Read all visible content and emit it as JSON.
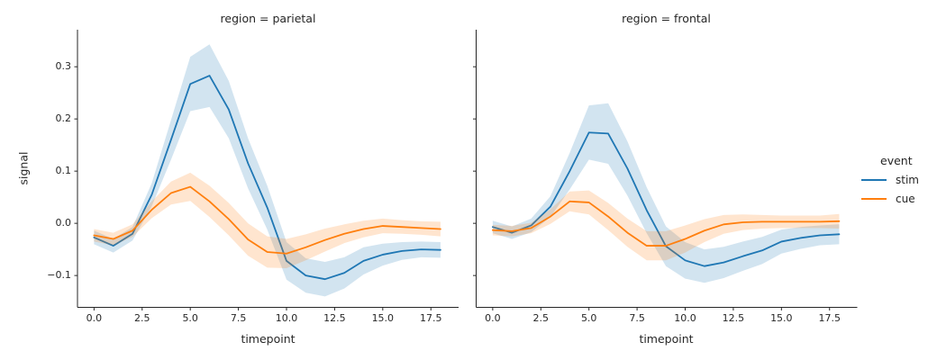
{
  "colors": {
    "stim": "#1f77b4",
    "cue": "#ff7f0e",
    "text": "#262626",
    "spine": "#262626",
    "band_alpha": 0.2,
    "background": "#ffffff"
  },
  "legend": {
    "title": "event",
    "position": "right",
    "items": [
      {
        "label": "stim",
        "color_key": "stim"
      },
      {
        "label": "cue",
        "color_key": "cue"
      }
    ]
  },
  "axes": {
    "xlabel": "timepoint",
    "ylabel": "signal",
    "x_ticks": [
      0,
      2.5,
      5,
      7.5,
      10,
      12.5,
      15,
      17.5
    ],
    "x_tick_labels": [
      "0.0",
      "2.5",
      "5.0",
      "7.5",
      "10.0",
      "12.5",
      "15.0",
      "17.5"
    ],
    "y_ticks": [
      0.3,
      0.2,
      0.1,
      0.0,
      -0.1
    ],
    "y_tick_labels": [
      "0.3",
      "0.2",
      "0.1",
      "0.0",
      "−0.1"
    ],
    "grid": false
  },
  "chart_data": [
    {
      "type": "line",
      "title": "region = parietal",
      "region": "parietal",
      "xlabel": "timepoint",
      "ylabel": "signal",
      "xlim": [
        -0.86,
        18.94
      ],
      "ylim": [
        -0.161,
        0.371
      ],
      "x": [
        0,
        1,
        2,
        3,
        4,
        5,
        6,
        7,
        8,
        9,
        10,
        11,
        12,
        13,
        14,
        15,
        16,
        17,
        18
      ],
      "series": [
        {
          "name": "stim",
          "values": [
            -0.027,
            -0.043,
            -0.02,
            0.055,
            0.16,
            0.267,
            0.283,
            0.218,
            0.115,
            0.03,
            -0.072,
            -0.1,
            -0.107,
            -0.095,
            -0.072,
            -0.06,
            -0.053,
            -0.05,
            -0.051
          ],
          "ci_half": [
            0.013,
            0.013,
            0.013,
            0.022,
            0.038,
            0.052,
            0.06,
            0.055,
            0.048,
            0.042,
            0.036,
            0.033,
            0.033,
            0.03,
            0.026,
            0.021,
            0.017,
            0.015,
            0.015
          ]
        },
        {
          "name": "cue",
          "values": [
            -0.023,
            -0.03,
            -0.014,
            0.026,
            0.058,
            0.07,
            0.042,
            0.008,
            -0.031,
            -0.055,
            -0.058,
            -0.046,
            -0.032,
            -0.02,
            -0.011,
            -0.005,
            -0.007,
            -0.009,
            -0.011
          ],
          "ci_half": [
            0.012,
            0.012,
            0.012,
            0.016,
            0.022,
            0.027,
            0.03,
            0.031,
            0.031,
            0.03,
            0.028,
            0.025,
            0.022,
            0.018,
            0.016,
            0.014,
            0.013,
            0.013,
            0.014
          ]
        }
      ]
    },
    {
      "type": "line",
      "title": "region = frontal",
      "region": "frontal",
      "xlabel": "timepoint",
      "ylabel": "signal",
      "xlim": [
        -0.86,
        18.94
      ],
      "ylim": [
        -0.161,
        0.371
      ],
      "x": [
        0,
        1,
        2,
        3,
        4,
        5,
        6,
        7,
        8,
        9,
        10,
        11,
        12,
        13,
        14,
        15,
        16,
        17,
        18
      ],
      "series": [
        {
          "name": "stim",
          "values": [
            -0.007,
            -0.018,
            -0.004,
            0.032,
            0.1,
            0.174,
            0.172,
            0.105,
            0.025,
            -0.044,
            -0.071,
            -0.082,
            -0.075,
            -0.063,
            -0.052,
            -0.035,
            -0.028,
            -0.023,
            -0.021
          ],
          "ci_half": [
            0.012,
            0.012,
            0.013,
            0.02,
            0.035,
            0.052,
            0.058,
            0.052,
            0.044,
            0.038,
            0.035,
            0.032,
            0.03,
            0.028,
            0.026,
            0.023,
            0.021,
            0.019,
            0.019
          ]
        },
        {
          "name": "cue",
          "values": [
            -0.013,
            -0.015,
            -0.009,
            0.013,
            0.042,
            0.04,
            0.013,
            -0.018,
            -0.043,
            -0.043,
            -0.03,
            -0.014,
            -0.002,
            0.002,
            0.003,
            0.003,
            0.003,
            0.003,
            0.004
          ],
          "ci_half": [
            0.01,
            0.01,
            0.01,
            0.014,
            0.019,
            0.023,
            0.026,
            0.027,
            0.028,
            0.028,
            0.026,
            0.022,
            0.018,
            0.015,
            0.013,
            0.012,
            0.012,
            0.012,
            0.014
          ]
        }
      ]
    }
  ]
}
